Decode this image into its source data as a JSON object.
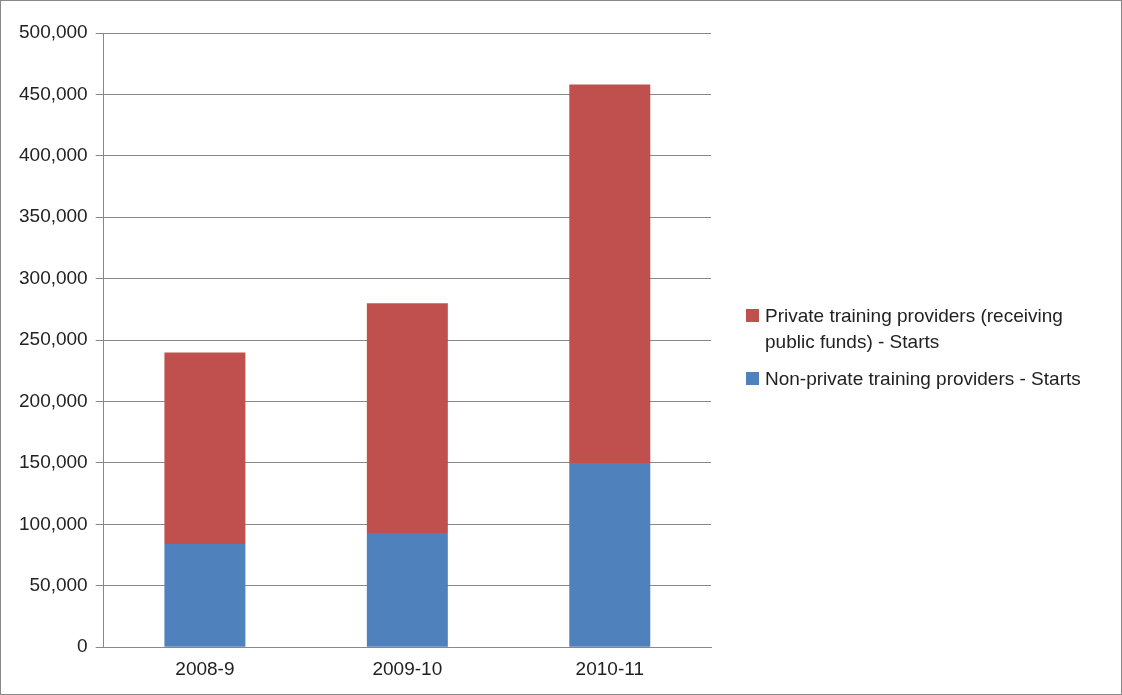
{
  "chart_data": {
    "type": "bar",
    "stacked": true,
    "categories": [
      "2008-9",
      "2009-10",
      "2010-11"
    ],
    "series": [
      {
        "name": "Non-private training providers - Starts",
        "color": "#4f81bd",
        "values": [
          84000,
          93000,
          150000
        ]
      },
      {
        "name": "Private training providers (receiving public funds) - Starts",
        "color": "#c0504d",
        "values": [
          156000,
          187000,
          308000
        ]
      }
    ],
    "ylim": [
      0,
      500000
    ],
    "yticks": [
      {
        "value": 0,
        "label": "0"
      },
      {
        "value": 50000,
        "label": "50,000"
      },
      {
        "value": 100000,
        "label": "100,000"
      },
      {
        "value": 150000,
        "label": "150,000"
      },
      {
        "value": 200000,
        "label": "200,000"
      },
      {
        "value": 250000,
        "label": "250,000"
      },
      {
        "value": 300000,
        "label": "300,000"
      },
      {
        "value": 350000,
        "label": "350,000"
      },
      {
        "value": 400000,
        "label": "400,000"
      },
      {
        "value": 450000,
        "label": "450,000"
      },
      {
        "value": 500000,
        "label": "500,000"
      }
    ],
    "grid": "y",
    "legend": "right"
  }
}
